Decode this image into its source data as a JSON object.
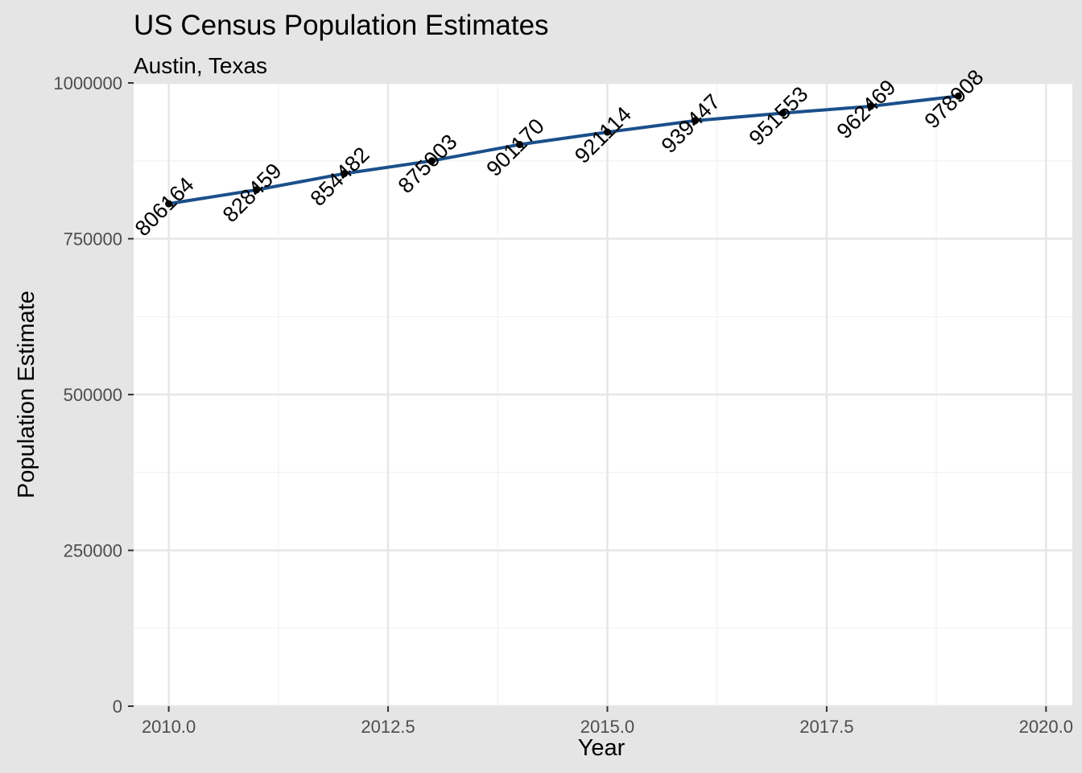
{
  "chart_data": {
    "type": "line",
    "title": "US Census Population Estimates",
    "subtitle": "Austin, Texas",
    "xlabel": "Year",
    "ylabel": "Population Estimate",
    "xlim": [
      2009.6,
      2020.3
    ],
    "ylim": [
      0,
      1000000
    ],
    "x_ticks": [
      2010,
      2012.5,
      2015,
      2017.5,
      2020
    ],
    "x_tick_labels": [
      "2010.0",
      "2012.5",
      "2015.0",
      "2017.5",
      "2020.0"
    ],
    "y_ticks": [
      0,
      250000,
      500000,
      750000,
      1000000
    ],
    "y_tick_labels": [
      "0",
      "250000",
      "500000",
      "750000",
      "1000000"
    ],
    "grid": true,
    "legend": "none",
    "colors": {
      "line": "#1b4f8a",
      "point": "#000000",
      "panel_background": "#ffffff",
      "plot_background": "#e5e5e5",
      "grid": "#e6e6e6"
    },
    "x": [
      2010,
      2011,
      2012,
      2013,
      2014,
      2015,
      2016,
      2017,
      2018,
      2019
    ],
    "values": [
      806164,
      828459,
      854482,
      875003,
      901170,
      921114,
      939447,
      951553,
      962469,
      978908
    ],
    "labels": [
      "806164",
      "828459",
      "854482",
      "875003",
      "901170",
      "921114",
      "939447",
      "951553",
      "962469",
      "978908"
    ]
  }
}
